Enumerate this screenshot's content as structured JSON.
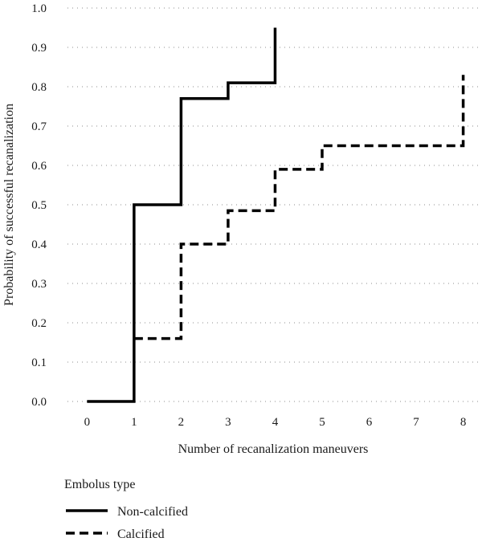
{
  "chart_data": {
    "type": "line",
    "step": true,
    "xlabel": "Number of recanalization maneuvers",
    "ylabel": "Probability of successful recanalization",
    "x_ticks": [
      0,
      1,
      2,
      3,
      4,
      5,
      6,
      7,
      8
    ],
    "y_ticks": [
      "0.0",
      "0.1",
      "0.2",
      "0.3",
      "0.4",
      "0.5",
      "0.6",
      "0.7",
      "0.8",
      "0.9",
      "1.0"
    ],
    "xlim": [
      -0.45,
      8.4
    ],
    "ylim": [
      0,
      1.0
    ],
    "grid": "horizontal dotted",
    "legend": {
      "title": "Embolus type",
      "placement": "bottom-left"
    },
    "series": [
      {
        "name": "Non-calcified",
        "line_style": "solid",
        "color": "#000000",
        "points": [
          {
            "x": 0,
            "y": 0.0
          },
          {
            "x": 1,
            "y": 0.0
          },
          {
            "x": 1,
            "y": 0.5
          },
          {
            "x": 2,
            "y": 0.5
          },
          {
            "x": 2,
            "y": 0.77
          },
          {
            "x": 3,
            "y": 0.77
          },
          {
            "x": 3,
            "y": 0.81
          },
          {
            "x": 4,
            "y": 0.81
          },
          {
            "x": 4,
            "y": 0.95
          }
        ]
      },
      {
        "name": "Calcified",
        "line_style": "dashed",
        "color": "#000000",
        "points": [
          {
            "x": 1,
            "y": 0.16
          },
          {
            "x": 2,
            "y": 0.16
          },
          {
            "x": 2,
            "y": 0.4
          },
          {
            "x": 3,
            "y": 0.4
          },
          {
            "x": 3,
            "y": 0.485
          },
          {
            "x": 4,
            "y": 0.485
          },
          {
            "x": 4,
            "y": 0.59
          },
          {
            "x": 5,
            "y": 0.59
          },
          {
            "x": 5,
            "y": 0.65
          },
          {
            "x": 8,
            "y": 0.65
          },
          {
            "x": 8,
            "y": 0.83
          }
        ]
      }
    ]
  }
}
